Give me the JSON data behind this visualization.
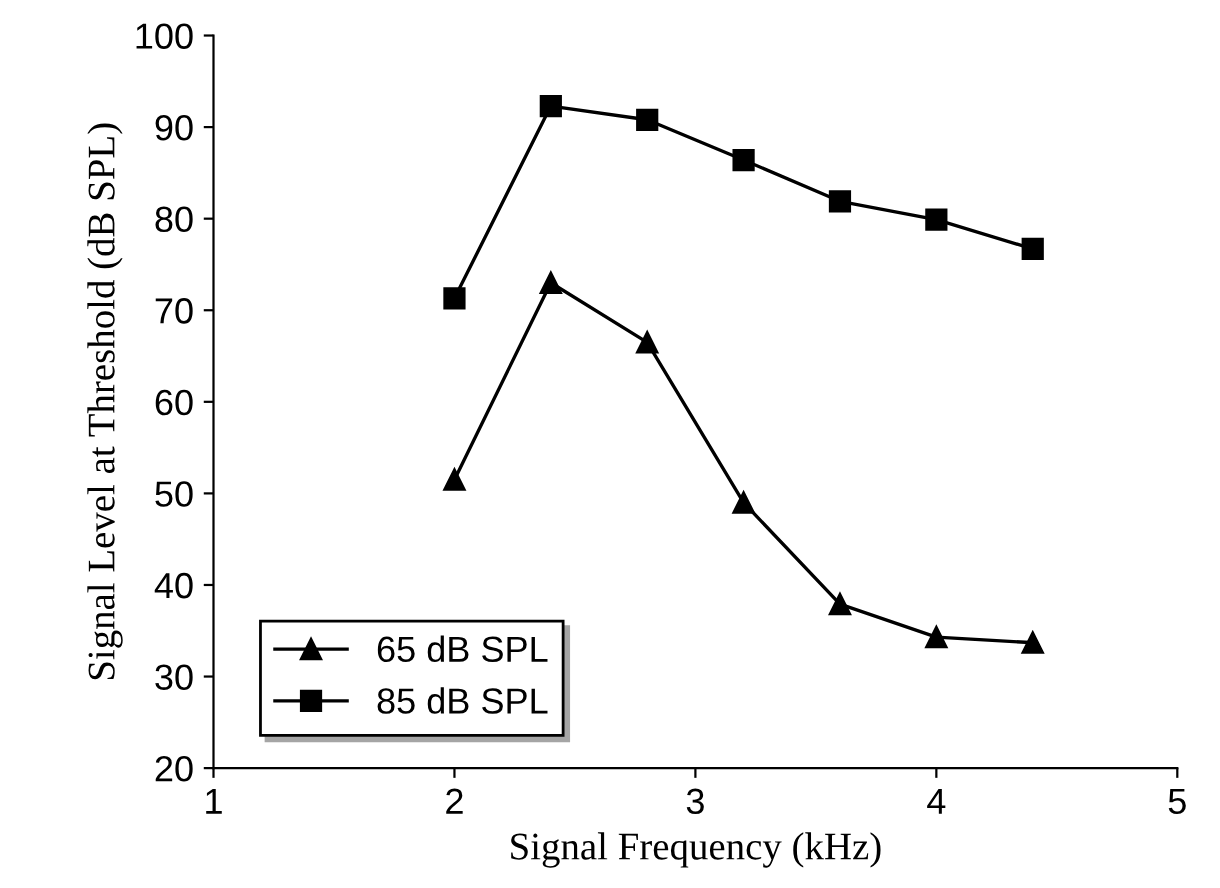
{
  "chart_data": {
    "type": "line",
    "xlabel": "Signal Frequency (kHz)",
    "ylabel": "Signal Level at Threshold (dB SPL)",
    "x": [
      2,
      2.4,
      2.8,
      3.2,
      3.6,
      4,
      4.4
    ],
    "series": [
      {
        "name": "65 dB SPL",
        "color": "#000000",
        "marker": "triangle",
        "values": [
          51.5,
          73,
          66.5,
          49,
          37.9,
          34.3,
          33.7
        ]
      },
      {
        "name": "85 dB SPL",
        "color": "#000000",
        "marker": "square",
        "values": [
          71.3,
          92.3,
          90.8,
          86.4,
          81.9,
          79.9,
          76.7
        ]
      }
    ],
    "xlim": [
      1,
      5
    ],
    "xticks": [
      1,
      2,
      3,
      4,
      5
    ],
    "ylim": [
      20,
      100
    ],
    "yticks": [
      20,
      30,
      40,
      50,
      60,
      70,
      80,
      90,
      100
    ],
    "grid": false,
    "legend": "bottom left",
    "line_style": "solid"
  }
}
